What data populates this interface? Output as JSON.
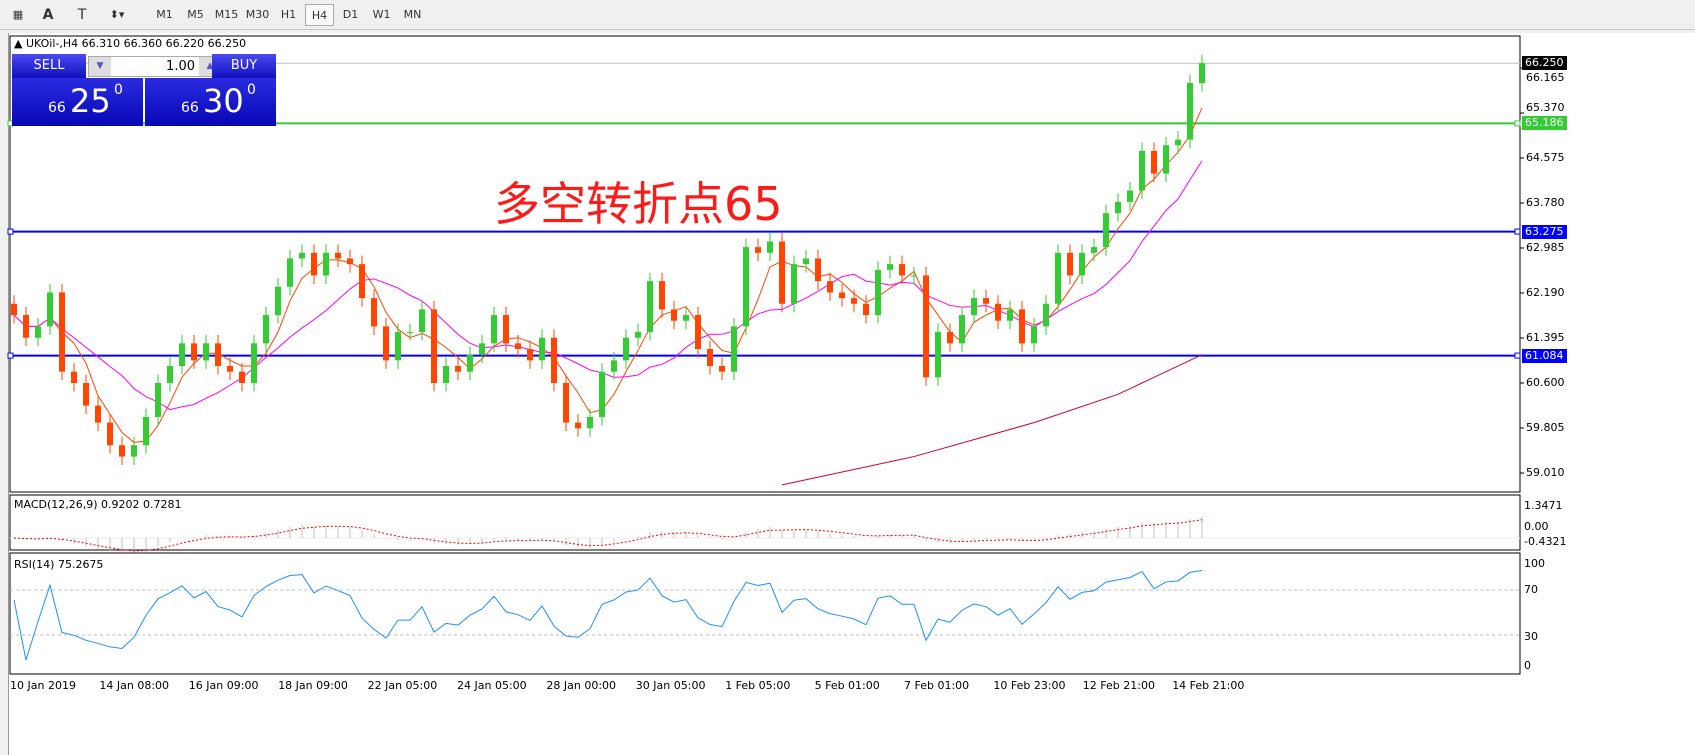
{
  "toolbar": {
    "timeframes": [
      "M1",
      "M5",
      "M15",
      "M30",
      "H1",
      "H4",
      "D1",
      "W1",
      "MN"
    ],
    "active": "H4",
    "tools": [
      "fibo-grid-icon",
      "text-icon",
      "text-label-icon",
      "arrows-icon"
    ]
  },
  "chart": {
    "symbol_line": "UKOil-,H4  66.310 66.360 66.220 66.250",
    "annotation": "多空转折点65"
  },
  "trade": {
    "sell_label": "SELL",
    "buy_label": "BUY",
    "volume": "1.00",
    "sell_big": "66",
    "sell_price": "25",
    "sell_sup": "0",
    "buy_big": "66",
    "buy_price": "30",
    "buy_sup": "0"
  },
  "price_axis": {
    "ticks": [
      "66.165",
      "65.370",
      "64.575",
      "63.780",
      "62.985",
      "62.190",
      "61.395",
      "60.600",
      "59.805",
      "59.010"
    ],
    "current": "66.250"
  },
  "hlines": [
    {
      "value": 65.186,
      "label": "65.186",
      "color": "#33cc33"
    },
    {
      "value": 63.275,
      "label": "63.275",
      "color": "#0000ff"
    },
    {
      "value": 61.084,
      "label": "61.084",
      "color": "#0000ff"
    }
  ],
  "time_axis": [
    "10 Jan 2019",
    "14 Jan 08:00",
    "16 Jan 09:00",
    "18 Jan 09:00",
    "22 Jan 05:00",
    "24 Jan 05:00",
    "28 Jan 00:00",
    "30 Jan 05:00",
    "1 Feb 05:00",
    "5 Feb 01:00",
    "7 Feb 01:00",
    "10 Feb 23:00",
    "12 Feb 21:00",
    "14 Feb 21:00"
  ],
  "macd": {
    "label": "MACD(12,26,9) 0.9202 0.7281",
    "ticks": [
      "1.3471",
      "0.00",
      "-0.4321"
    ]
  },
  "rsi": {
    "label": "RSI(14) 75.2675",
    "ticks": [
      "100",
      "70",
      "30",
      "0"
    ]
  },
  "colors": {
    "bull": "#33cc33",
    "bear": "#ff4500",
    "ma_fast": "#ff4500",
    "ma_mid": "#ff00ff",
    "ma_long": "#cc0033",
    "rsi": "#1e90ff",
    "macd_signal": "#ff0000"
  },
  "chart_data": {
    "type": "candlestick",
    "ylim": [
      58.8,
      66.6
    ],
    "close": [
      61.8,
      61.4,
      61.6,
      62.2,
      60.8,
      60.6,
      60.2,
      59.9,
      59.5,
      59.3,
      59.5,
      60.0,
      60.6,
      60.9,
      61.3,
      61.0,
      61.3,
      60.9,
      60.8,
      60.6,
      61.3,
      61.8,
      62.3,
      62.8,
      62.9,
      62.5,
      62.9,
      62.8,
      62.7,
      62.1,
      61.6,
      61.0,
      61.5,
      61.5,
      61.9,
      60.6,
      60.9,
      60.8,
      61.1,
      61.3,
      61.8,
      61.3,
      61.2,
      61.0,
      61.4,
      60.6,
      59.9,
      59.8,
      60.0,
      60.8,
      61.0,
      61.4,
      61.5,
      62.4,
      61.9,
      61.7,
      61.8,
      61.2,
      60.9,
      60.8,
      61.6,
      63.0,
      62.9,
      63.1,
      62.0,
      62.7,
      62.8,
      62.4,
      62.2,
      62.1,
      62.0,
      61.8,
      62.6,
      62.7,
      62.5,
      62.5,
      60.7,
      61.5,
      61.3,
      61.8,
      62.1,
      62.0,
      61.7,
      61.9,
      61.3,
      61.6,
      62.0,
      62.9,
      62.5,
      62.9,
      63.0,
      63.6,
      63.8,
      64.0,
      64.7,
      64.3,
      64.8,
      64.9,
      65.9,
      66.25
    ],
    "ma_long": [
      [
        64,
        58.8
      ],
      [
        75,
        59.3
      ],
      [
        85,
        59.9
      ],
      [
        92,
        60.4
      ],
      [
        99,
        61.1
      ]
    ]
  }
}
